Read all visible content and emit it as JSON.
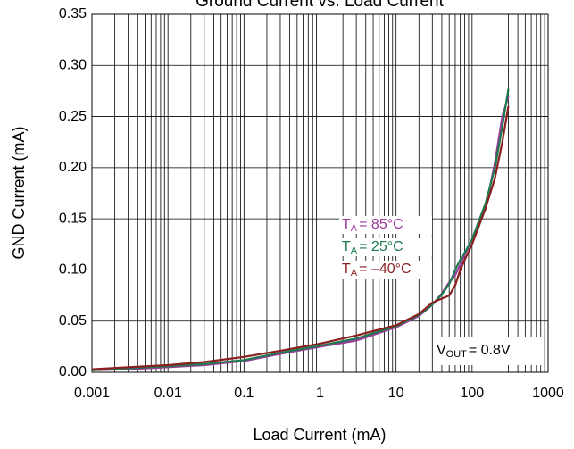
{
  "chart_data": {
    "type": "line",
    "title": "Ground Current vs. Load Current",
    "xlabel": "Load Current (mA)",
    "ylabel": "GND Current (mA)",
    "xscale": "log",
    "xlim": [
      0.001,
      1000
    ],
    "ylim": [
      0,
      0.35
    ],
    "xticks": [
      0.001,
      0.01,
      0.1,
      1,
      10,
      100,
      1000
    ],
    "xminorticks": [
      0.002,
      0.003,
      0.004,
      0.005,
      0.006,
      0.007,
      0.008,
      0.009,
      0.02,
      0.03,
      0.04,
      0.05,
      0.06,
      0.07,
      0.08,
      0.09,
      0.2,
      0.3,
      0.4,
      0.5,
      0.6,
      0.7,
      0.8,
      0.9,
      2,
      3,
      4,
      5,
      6,
      7,
      8,
      9,
      20,
      30,
      40,
      50,
      60,
      70,
      80,
      90,
      200,
      300,
      400,
      500,
      600,
      700,
      800,
      900
    ],
    "yticks": [
      {
        "value": 0,
        "label": "0.00"
      },
      {
        "value": 0.05,
        "label": "0.05"
      },
      {
        "value": 0.1,
        "label": "0.10"
      },
      {
        "value": 0.15,
        "label": "0.15"
      },
      {
        "value": 0.2,
        "label": "0.20"
      },
      {
        "value": 0.25,
        "label": "0.25"
      },
      {
        "value": 0.3,
        "label": "0.30"
      },
      {
        "value": 0.35,
        "label": "0.35"
      }
    ],
    "grid": true,
    "x": [
      0.001,
      0.003,
      0.01,
      0.03,
      0.1,
      0.3,
      1,
      3,
      10,
      20,
      30,
      40,
      50,
      60,
      70,
      80,
      100,
      150,
      200,
      250,
      300
    ],
    "series": [
      {
        "label": {
          "main": "T",
          "sub": "A",
          "rest": "= 85°C"
        },
        "color": "#9b3a9b",
        "values": [
          0.002,
          0.003,
          0.005,
          0.007,
          0.011,
          0.018,
          0.025,
          0.031,
          0.044,
          0.055,
          0.066,
          0.077,
          0.088,
          0.095,
          0.105,
          0.115,
          0.13,
          0.16,
          0.205,
          0.25,
          0.27
        ]
      },
      {
        "label": {
          "main": "T",
          "sub": "A",
          "rest": "= 25°C"
        },
        "color": "#1b7a4e",
        "values": [
          0.002,
          0.004,
          0.006,
          0.008,
          0.012,
          0.019,
          0.026,
          0.033,
          0.045,
          0.056,
          0.066,
          0.076,
          0.086,
          0.1,
          0.11,
          0.117,
          0.13,
          0.165,
          0.2,
          0.24,
          0.277
        ]
      },
      {
        "label": {
          "main": "T",
          "sub": "A",
          "rest": "= –40°C"
        },
        "color": "#8b1f1f",
        "values": [
          0.003,
          0.005,
          0.007,
          0.01,
          0.015,
          0.021,
          0.028,
          0.036,
          0.046,
          0.057,
          0.068,
          0.072,
          0.075,
          0.085,
          0.1,
          0.11,
          0.125,
          0.16,
          0.19,
          0.225,
          0.26
        ]
      }
    ],
    "annotation": {
      "main": "V",
      "sub": "OUT",
      "rest": "= 0.8V"
    }
  }
}
